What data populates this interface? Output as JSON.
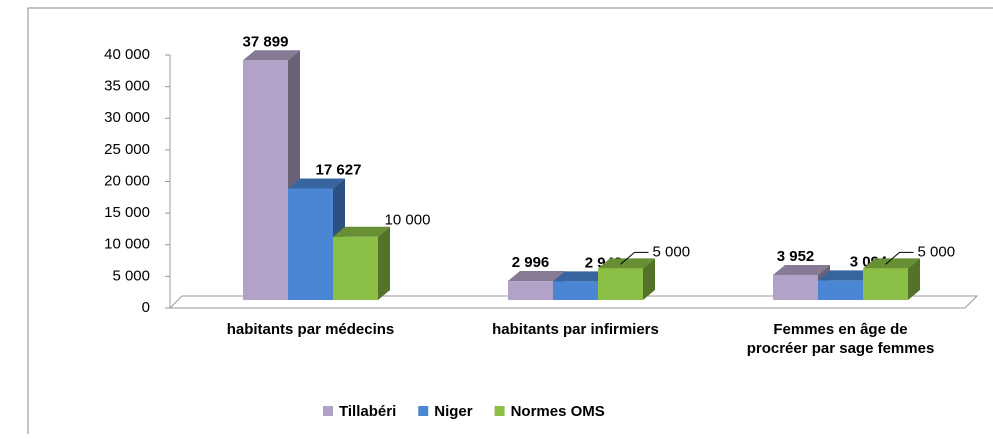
{
  "chart_data": {
    "type": "bar3d",
    "categories": [
      "habitants par médecins",
      "habitants par infirmiers",
      "Femmes en âge de procréer par sage femmes"
    ],
    "series": [
      {
        "name": "Tillabéri",
        "color": "#b3a2c7",
        "values": [
          37899,
          2996,
          3952
        ],
        "value_labels": [
          "37 899",
          "2 996",
          "3 952"
        ]
      },
      {
        "name": "Niger",
        "color": "#4a86d4",
        "values": [
          17627,
          2943,
          3094
        ],
        "value_labels": [
          "17 627",
          "2 943",
          "3 094"
        ]
      },
      {
        "name": "Normes OMS",
        "color": "#8cbf45",
        "values": [
          10000,
          5000,
          5000
        ],
        "value_labels": [
          "10 000",
          "5 000",
          "5 000"
        ]
      }
    ],
    "ylim": [
      0,
      40000
    ],
    "yticks": [
      0,
      {
        "value": 5000,
        "label": "5 000"
      },
      {
        "value": 10000,
        "label": "10 000"
      },
      {
        "value": 15000,
        "label": "15 000"
      },
      {
        "value": 20000,
        "label": "20 000"
      },
      {
        "value": 25000,
        "label": "25 000"
      },
      {
        "value": 30000,
        "label": "30 000"
      },
      {
        "value": 35000,
        "label": "35 000"
      },
      {
        "value": 40000,
        "label": "40 000"
      }
    ],
    "legend": "bottom"
  }
}
